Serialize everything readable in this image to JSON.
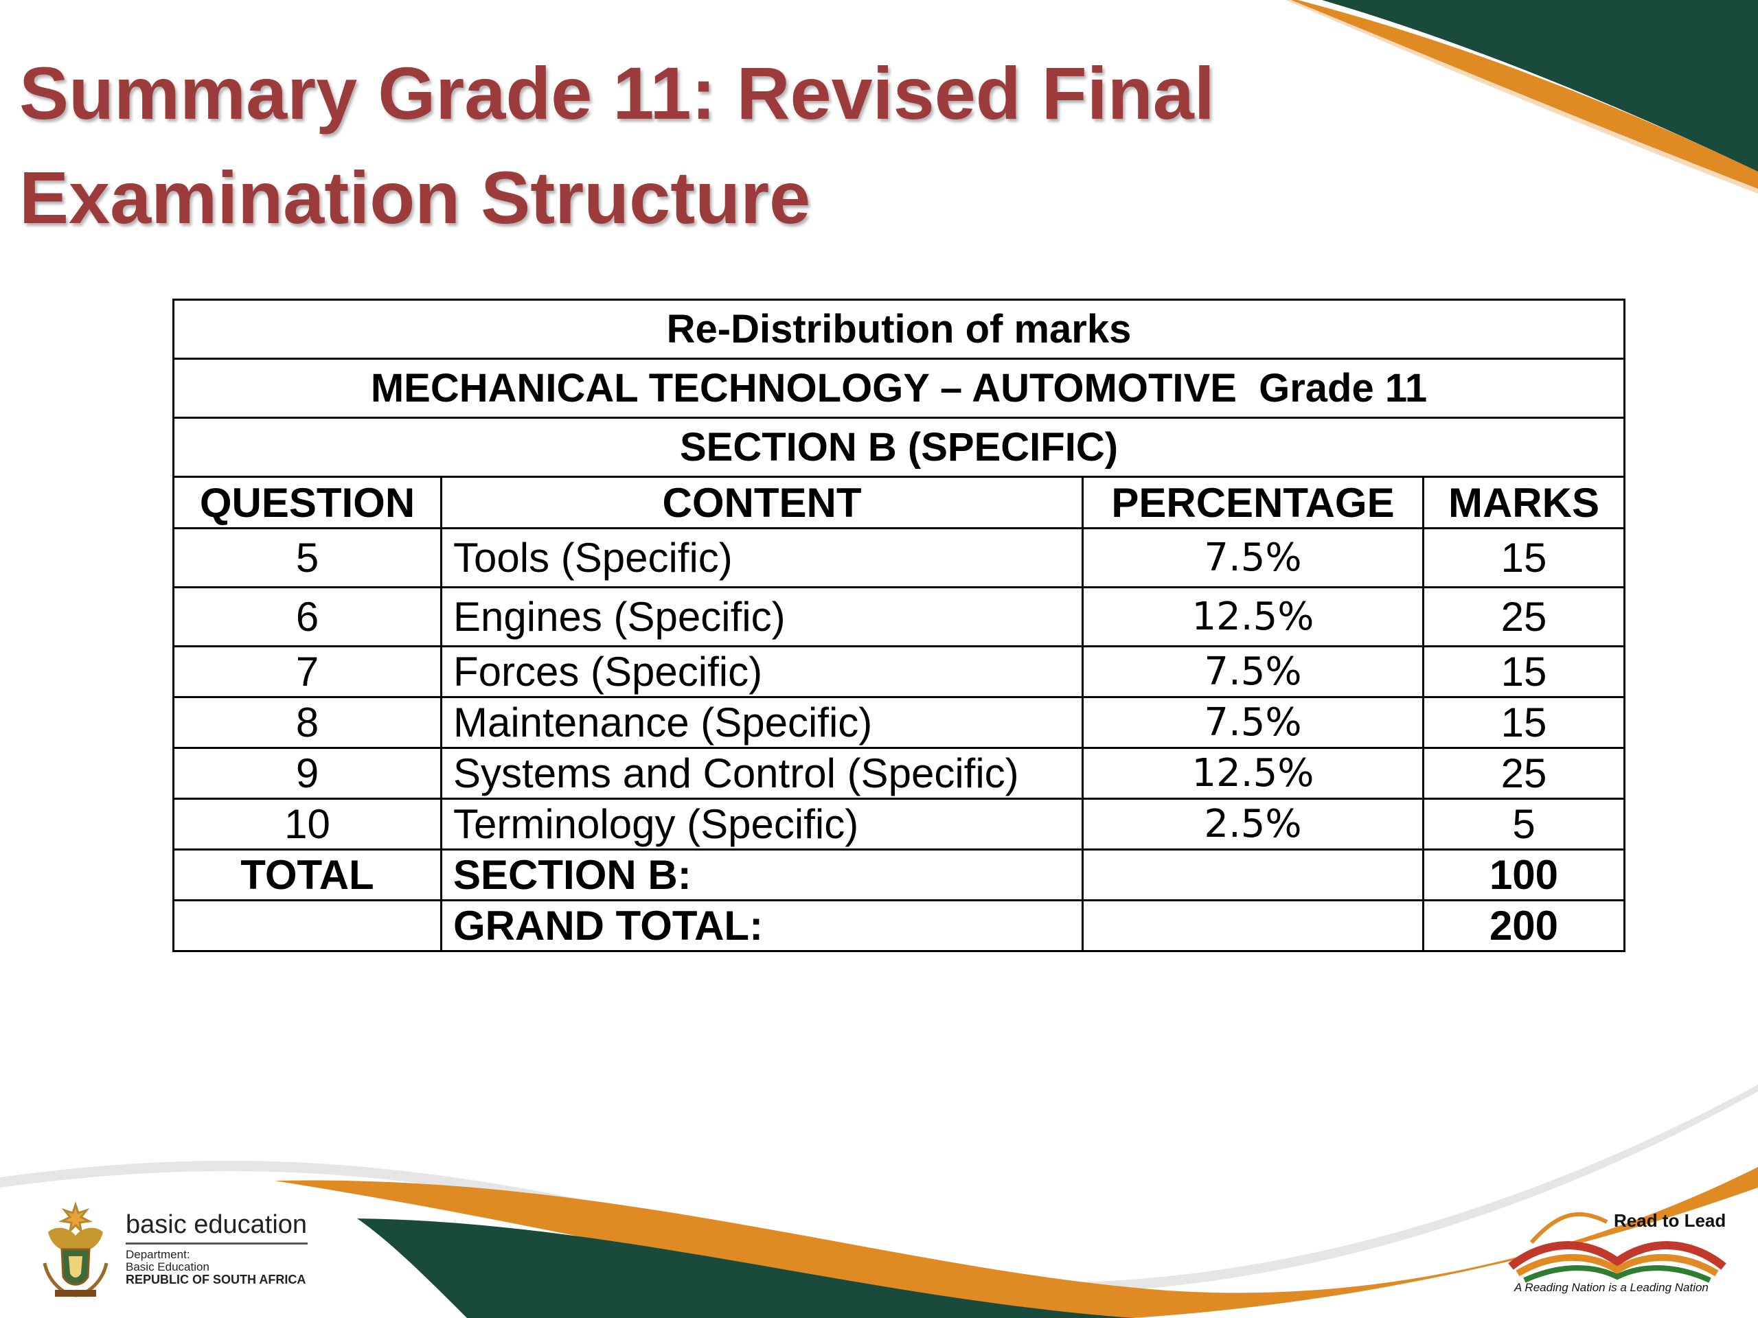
{
  "title": {
    "line1": "Summary Grade 11: Revised Final",
    "line2": "Examination Structure"
  },
  "table": {
    "header1": "Re-Distribution of marks",
    "header2": "MECHANICAL TECHNOLOGY – AUTOMOTIVE  Grade 11",
    "header3": "SECTION B (SPECIFIC)",
    "columns": [
      "QUESTION",
      "CONTENT",
      "PERCENTAGE",
      "MARKS"
    ],
    "rows": [
      {
        "question": "5",
        "content": "Tools (Specific)",
        "percentage": "7.5%",
        "marks": "15"
      },
      {
        "question": "6",
        "content": "Engines (Specific)",
        "percentage": "12.5%",
        "marks": "25"
      },
      {
        "question": "7",
        "content": "Forces (Specific)",
        "percentage": "7.5%",
        "marks": "15"
      },
      {
        "question": "8",
        "content": "Maintenance (Specific)",
        "percentage": "7.5%",
        "marks": "15"
      },
      {
        "question": "9",
        "content": "Systems and Control (Specific)",
        "percentage": "12.5%",
        "marks": "25"
      },
      {
        "question": "10",
        "content": "Terminology (Specific)",
        "percentage": "2.5%",
        "marks": "5"
      }
    ],
    "total_row": {
      "label": "TOTAL",
      "content": "SECTION B:",
      "marks": "100"
    },
    "grand_total_row": {
      "content": "GRAND TOTAL:",
      "marks": "200"
    }
  },
  "footer": {
    "left_logo": {
      "name": "basic education",
      "line1": "Department:",
      "line2": "Basic Education",
      "line3": "REPUBLIC OF SOUTH AFRICA",
      "icon": "coat-of-arms-icon"
    },
    "right_logo": {
      "title": "Read to Lead",
      "tagline": "A Reading Nation is a Leading Nation",
      "icon": "open-book-icon"
    }
  },
  "colors": {
    "title": "#9b3b3b",
    "dark_green": "#1a4a3c",
    "orange": "#e08a24"
  }
}
